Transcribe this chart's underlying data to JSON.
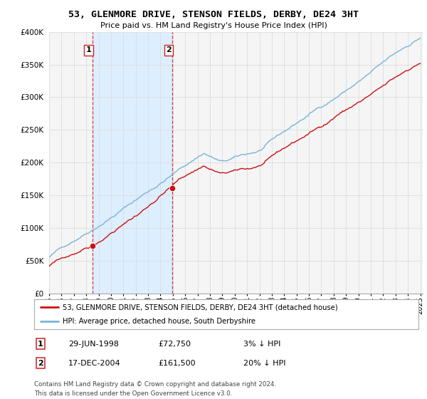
{
  "title": "53, GLENMORE DRIVE, STENSON FIELDS, DERBY, DE24 3HT",
  "subtitle": "Price paid vs. HM Land Registry's House Price Index (HPI)",
  "legend_line1": "53, GLENMORE DRIVE, STENSON FIELDS, DERBY, DE24 3HT (detached house)",
  "legend_line2": "HPI: Average price, detached house, South Derbyshire",
  "footer": "Contains HM Land Registry data © Crown copyright and database right 2024.\nThis data is licensed under the Open Government Licence v3.0.",
  "sale1_date": "29-JUN-1998",
  "sale1_price": "£72,750",
  "sale1_hpi": "3% ↓ HPI",
  "sale2_date": "17-DEC-2004",
  "sale2_price": "£161,500",
  "sale2_hpi": "20% ↓ HPI",
  "sale1_x": 1998.49,
  "sale1_y": 72750,
  "sale2_x": 2004.96,
  "sale2_y": 161500,
  "hpi_color": "#7ab4d8",
  "price_color": "#cc1111",
  "vline_color": "#cc2222",
  "shade_color": "#ddeeff",
  "background_color": "#ffffff",
  "plot_bg_color": "#f5f5f5",
  "grid_color": "#dddddd",
  "ylim": [
    0,
    400000
  ],
  "xlim_start": 1995.0,
  "xlim_end": 2025.2
}
